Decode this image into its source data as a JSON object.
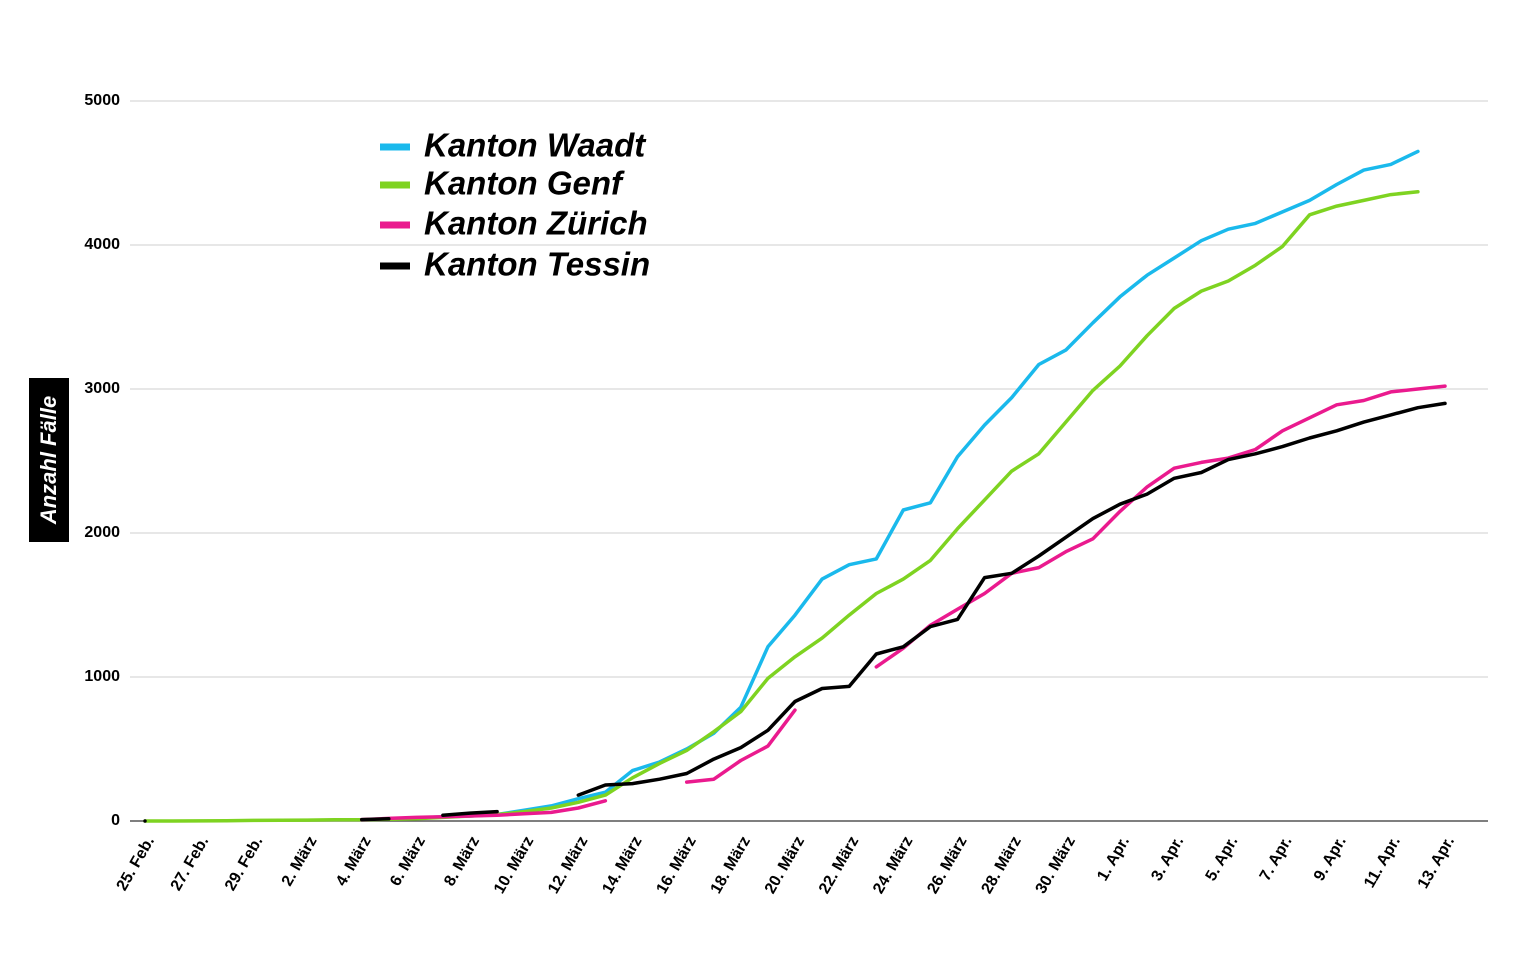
{
  "chart_data": {
    "type": "line",
    "y_label": "Anzahl Fälle",
    "categories": [
      "25. Feb.",
      null,
      "27. Feb.",
      null,
      "29. Feb.",
      null,
      "2. März",
      null,
      "4. März",
      null,
      "6. März",
      null,
      "8. März",
      null,
      "10. März",
      null,
      "12. März",
      null,
      "14. März",
      null,
      "16. März",
      null,
      "18. März",
      null,
      "20. März",
      null,
      "22. März",
      null,
      "24. März",
      null,
      "26. März",
      null,
      "28. März",
      null,
      "30. März",
      null,
      "1. Apr.",
      null,
      "3. Apr.",
      null,
      "5. Apr.",
      null,
      "7. Apr.",
      null,
      "9. Apr.",
      null,
      "11. Apr.",
      null,
      "13. Apr."
    ],
    "series": [
      {
        "name": "Kanton Waadt",
        "color": "#1ab9ec",
        "values": [
          null,
          null,
          null,
          null,
          null,
          null,
          null,
          null,
          null,
          null,
          20,
          30,
          35,
          45,
          75,
          105,
          155,
          200,
          350,
          410,
          500,
          610,
          790,
          1210,
          1430,
          1680,
          1780,
          1820,
          2160,
          2210,
          2530,
          2750,
          2940,
          3170,
          3270,
          3460,
          3640,
          3790,
          3910,
          4030,
          4110,
          4150,
          4230,
          4310,
          4420,
          4520,
          4560,
          4650,
          null
        ]
      },
      {
        "name": "Kanton Genf",
        "color": "#7ed321",
        "values": [
          0,
          0,
          1,
          2,
          4,
          5,
          6,
          8,
          9,
          12,
          15,
          25,
          35,
          45,
          65,
          90,
          130,
          180,
          300,
          400,
          490,
          620,
          760,
          990,
          1140,
          1270,
          1430,
          1580,
          1680,
          1810,
          2030,
          2230,
          2430,
          2550,
          2770,
          2990,
          3160,
          3370,
          3560,
          3680,
          3750,
          3860,
          3990,
          4210,
          4270,
          4310,
          4350,
          4370,
          null
        ]
      },
      {
        "name": "Kanton Zürich",
        "color": "#ea1a8e",
        "values": [
          null,
          null,
          null,
          null,
          null,
          null,
          null,
          null,
          10,
          18,
          25,
          30,
          35,
          40,
          50,
          60,
          90,
          140,
          null,
          null,
          270,
          290,
          420,
          520,
          770,
          null,
          null,
          1070,
          1200,
          1360,
          1470,
          1580,
          1720,
          1760,
          1870,
          1960,
          2150,
          2320,
          2450,
          2490,
          2520,
          2580,
          2710,
          2800,
          2890,
          2920,
          2980,
          3000,
          3020
        ]
      },
      {
        "name": "Kanton Tessin",
        "color": "#000000",
        "values": [
          0,
          null,
          null,
          null,
          null,
          null,
          null,
          null,
          10,
          15,
          null,
          40,
          55,
          65,
          null,
          null,
          180,
          250,
          260,
          290,
          330,
          430,
          510,
          630,
          830,
          920,
          935,
          1160,
          1210,
          1350,
          1400,
          1690,
          1720,
          1840,
          1970,
          2100,
          2200,
          2270,
          2380,
          2420,
          2510,
          2550,
          2600,
          2660,
          2710,
          2770,
          2820,
          2870,
          2900
        ]
      }
    ],
    "ylim": [
      0,
      5000
    ],
    "yticks": [
      0,
      1000,
      2000,
      3000,
      4000,
      5000
    ],
    "grid": true,
    "legend": "top-left"
  }
}
